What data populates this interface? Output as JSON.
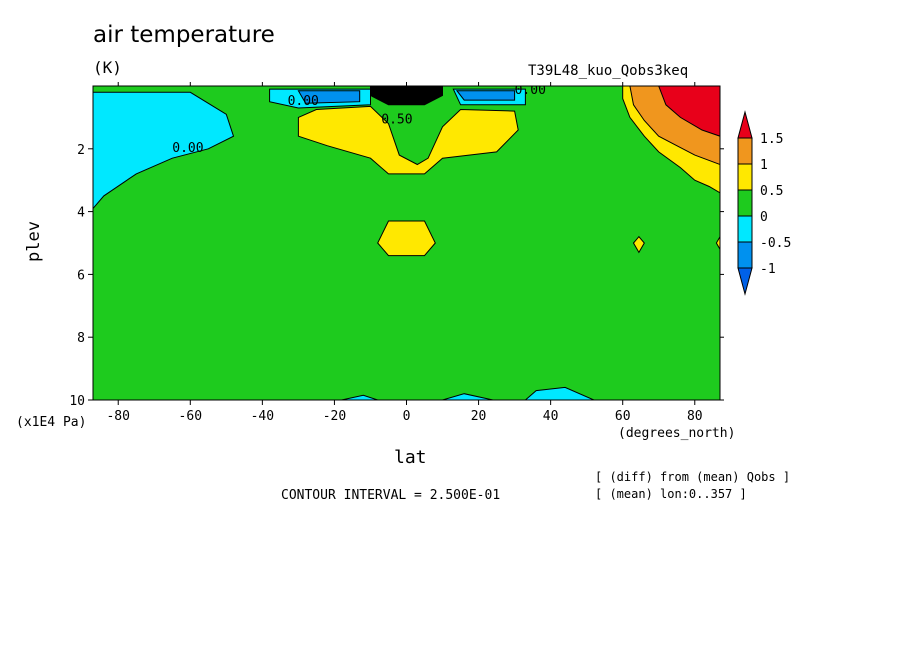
{
  "chart_data": {
    "type": "heatmap",
    "title": "air temperature",
    "units": "(K)",
    "experiment": "T39L48_kuo_Qobs3keq",
    "xlabel": "lat",
    "xunit": "(degrees_north)",
    "ylabel": "plev",
    "yunit": "(x1E4 Pa)",
    "xlim": [
      -87,
      87
    ],
    "ylim": [
      10,
      0
    ],
    "xticks": [
      {
        "value": -80,
        "label": "-80"
      },
      {
        "value": -60,
        "label": "-60"
      },
      {
        "value": -40,
        "label": "-40"
      },
      {
        "value": -20,
        "label": "-20"
      },
      {
        "value": 0,
        "label": "0"
      },
      {
        "value": 20,
        "label": "20"
      },
      {
        "value": 40,
        "label": "40"
      },
      {
        "value": 60,
        "label": "60"
      },
      {
        "value": 80,
        "label": "80"
      }
    ],
    "yticks": [
      {
        "value": 2,
        "label": "2"
      },
      {
        "value": 4,
        "label": "4"
      },
      {
        "value": 6,
        "label": "6"
      },
      {
        "value": 8,
        "label": "8"
      },
      {
        "value": 10,
        "label": "10"
      }
    ],
    "colorbar": {
      "labels": [
        "1.5",
        "1",
        "0.5",
        "0",
        "-0.5",
        "-1"
      ],
      "colors": [
        "#e8001a",
        "#f0961e",
        "#ffe800",
        "#1ecb1e",
        "#00e8ff",
        "#0091ef",
        "#0061e8"
      ]
    },
    "contour_labels": [
      "0.00",
      "0.00",
      "0.50",
      "0.00"
    ],
    "contour_interval": "CONTOUR INTERVAL = 2.500E-01",
    "notes": [
      "[ (diff) from (mean) Qobs ]",
      "[ (mean) lon:0..357 ]"
    ],
    "regions": [
      {
        "level": "-0.5..0",
        "points": [
          [
            -87,
            0.2
          ],
          [
            -60,
            0.2
          ],
          [
            -50,
            0.9
          ],
          [
            -48,
            1.6
          ],
          [
            -55,
            2.0
          ],
          [
            -65,
            2.3
          ],
          [
            -75,
            2.8
          ],
          [
            -84,
            3.5
          ],
          [
            -87,
            3.9
          ]
        ]
      },
      {
        "level": "-0.5..0",
        "points": [
          [
            -38,
            0.1
          ],
          [
            -10,
            0.1
          ],
          [
            -10,
            0.6
          ],
          [
            -30,
            0.7
          ],
          [
            -38,
            0.5
          ]
        ]
      },
      {
        "level": "-0.5..0",
        "points": [
          [
            13,
            0.1
          ],
          [
            33,
            0.1
          ],
          [
            33,
            0.6
          ],
          [
            15,
            0.6
          ]
        ]
      },
      {
        "level": "-0.5..0",
        "points": [
          [
            -18,
            10
          ],
          [
            -12,
            9.85
          ],
          [
            -8,
            10
          ]
        ]
      },
      {
        "level": "-0.5..0",
        "points": [
          [
            10,
            10
          ],
          [
            16,
            9.8
          ],
          [
            24,
            10
          ]
        ]
      },
      {
        "level": "-0.5..0",
        "points": [
          [
            33,
            10
          ],
          [
            36,
            9.7
          ],
          [
            44,
            9.6
          ],
          [
            52,
            10
          ]
        ]
      },
      {
        "level": "-1..-0.5",
        "points": [
          [
            -30,
            0.15
          ],
          [
            -13,
            0.15
          ],
          [
            -13,
            0.5
          ],
          [
            -28,
            0.55
          ]
        ]
      },
      {
        "level": "-1..-0.5",
        "points": [
          [
            14,
            0.15
          ],
          [
            30,
            0.15
          ],
          [
            30,
            0.45
          ],
          [
            16,
            0.45
          ]
        ]
      },
      {
        "level": "0.5..1",
        "points": [
          [
            -30,
            1.0
          ],
          [
            -25,
            0.75
          ],
          [
            -10,
            0.65
          ],
          [
            -5,
            1.2
          ],
          [
            -2,
            2.2
          ],
          [
            3,
            2.5
          ],
          [
            6,
            2.3
          ],
          [
            10,
            1.3
          ],
          [
            15,
            0.75
          ],
          [
            30,
            0.8
          ],
          [
            31,
            1.4
          ],
          [
            25,
            2.1
          ],
          [
            10,
            2.3
          ],
          [
            5,
            2.8
          ],
          [
            -5,
            2.8
          ],
          [
            -10,
            2.3
          ],
          [
            -22,
            1.9
          ],
          [
            -30,
            1.6
          ]
        ]
      },
      {
        "level": "0.5..1",
        "points": [
          [
            -8,
            5.0
          ],
          [
            -5,
            4.3
          ],
          [
            5,
            4.3
          ],
          [
            8,
            5.0
          ],
          [
            5,
            5.4
          ],
          [
            -5,
            5.4
          ]
        ]
      },
      {
        "level": "0.5..1",
        "points": [
          [
            63,
            5.0
          ],
          [
            64.5,
            4.8
          ],
          [
            66,
            5.0
          ],
          [
            64.5,
            5.3
          ]
        ]
      },
      {
        "level": "0.5..1",
        "points": [
          [
            87,
            4.8
          ],
          [
            86,
            5.0
          ],
          [
            87,
            5.2
          ]
        ]
      },
      {
        "level": "0.5..1",
        "points": [
          [
            60,
            0
          ],
          [
            87,
            0
          ],
          [
            87,
            3.4
          ],
          [
            84,
            3.2
          ],
          [
            80,
            3.0
          ],
          [
            76,
            2.6
          ],
          [
            70,
            2.1
          ],
          [
            66,
            1.6
          ],
          [
            62,
            1.0
          ],
          [
            60,
            0.4
          ]
        ]
      },
      {
        "level": "1..1.5",
        "points": [
          [
            62,
            0
          ],
          [
            87,
            0
          ],
          [
            87,
            2.5
          ],
          [
            80,
            2.2
          ],
          [
            75,
            1.9
          ],
          [
            70,
            1.6
          ],
          [
            66,
            1.1
          ],
          [
            63,
            0.6
          ]
        ]
      },
      {
        "level": "1.5+",
        "points": [
          [
            70,
            0
          ],
          [
            87,
            0
          ],
          [
            87,
            1.6
          ],
          [
            82,
            1.4
          ],
          [
            76,
            1.0
          ],
          [
            72,
            0.6
          ]
        ]
      },
      {
        "level": "-1-",
        "points": [
          [
            -10,
            0
          ],
          [
            10,
            0
          ],
          [
            10,
            0.3
          ],
          [
            5,
            0.6
          ],
          [
            -5,
            0.6
          ],
          [
            -10,
            0.3
          ]
        ]
      }
    ]
  }
}
